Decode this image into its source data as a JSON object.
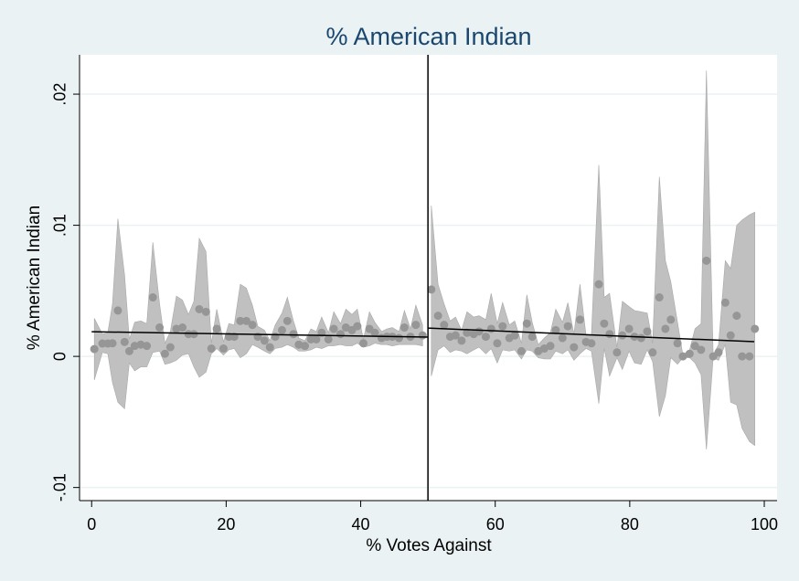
{
  "chart_data": {
    "type": "scatter",
    "title": "% American Indian",
    "x_label": "% Votes Against",
    "y_label": "% American Indian",
    "xlim": [
      -1.8,
      101.9
    ],
    "ylim": [
      -0.011,
      0.023
    ],
    "xticks": [
      0,
      20,
      40,
      60,
      80,
      100
    ],
    "yticks": [
      {
        "value": -0.01,
        "label": "-.01"
      },
      {
        "value": 0,
        "label": "0"
      },
      {
        "value": 0.01,
        "label": ".01"
      },
      {
        "value": 0.02,
        "label": ".02"
      }
    ],
    "grid": true,
    "cutoff": 50,
    "band_color": "#c0c0c0",
    "point_color": "#969696",
    "fit_color": "#000000",
    "series": [
      {
        "x": [
          0.4,
          1.6,
          2.4,
          3.1,
          3.9,
          4.9,
          5.6,
          6.4,
          7.3,
          8.2,
          9.1,
          10.1,
          10.9,
          11.7,
          12.6,
          13.5,
          14.4,
          15.2,
          16,
          17,
          17.8,
          18.6,
          19.6,
          20.4,
          21.2,
          22.1,
          23,
          23.9,
          24.7,
          25.7,
          26.5,
          27.3,
          28.3,
          29.1,
          30,
          30.8,
          31.7,
          32.6,
          33.4,
          34.2,
          35.2,
          36,
          37,
          37.8,
          38.7,
          39.5,
          40.4,
          41.3,
          42.1,
          43.1,
          43.9,
          44.7,
          45.7,
          46.5,
          47.4,
          48.2,
          49.2
        ],
        "values": [
          0.00056,
          0.00098,
          0.00098,
          0.001,
          0.0035,
          0.0011,
          0.0004,
          0.0008,
          0.0009,
          0.0008,
          0.0045,
          0.0022,
          0.0002,
          0.0007,
          0.0021,
          0.0022,
          0.0017,
          0.0017,
          0.0036,
          0.0034,
          0.0006,
          0.0021,
          0.0006,
          0.0015,
          0.0015,
          0.0027,
          0.0027,
          0.0024,
          0.0015,
          0.0012,
          0.0007,
          0.0015,
          0.002,
          0.0027,
          0.0017,
          0.0009,
          0.0008,
          0.0013,
          0.0013,
          0.0018,
          0.0013,
          0.0021,
          0.0017,
          0.0022,
          0.002,
          0.0023,
          0.001,
          0.0021,
          0.0018,
          0.0014,
          0.0015,
          0.0015,
          0.0014,
          0.0022,
          0.0015,
          0.0024,
          0.0016
        ],
        "lower": [
          -0.0018,
          0.0003,
          0.0002,
          -0.002,
          -0.0035,
          -0.004,
          -0.0005,
          -0.0011,
          -0.0008,
          -0.0008,
          0.0003,
          0.0004,
          -0.0006,
          -0.0005,
          -0.0003,
          0.0001,
          0.0002,
          -0.0008,
          -0.0016,
          -0.0012,
          0.0002,
          0.0006,
          0.0001,
          0.0005,
          0.0006,
          -0.0001,
          0.0002,
          0.0009,
          0.0007,
          0.0004,
          0.0002,
          0.0006,
          0.0007,
          0.0009,
          0.0007,
          0.0004,
          0.0004,
          0.0005,
          0.0007,
          0.0006,
          0.0008,
          0.0008,
          0.0009,
          0.0008,
          0.0008,
          0.001,
          0.0007,
          0.0008,
          0.001,
          0.0009,
          0.0009,
          0.0008,
          0.0009,
          0.0009,
          0.0009,
          0.0009,
          0.0008
        ],
        "upper": [
          0.0029,
          0.0017,
          0.0018,
          0.004,
          0.0105,
          0.0062,
          0.0013,
          0.0026,
          0.0027,
          0.0025,
          0.0087,
          0.004,
          0.001,
          0.0019,
          0.0046,
          0.0043,
          0.0032,
          0.0042,
          0.009,
          0.008,
          0.001,
          0.0036,
          0.0011,
          0.0025,
          0.0024,
          0.0055,
          0.0052,
          0.0039,
          0.0023,
          0.002,
          0.0012,
          0.0024,
          0.0033,
          0.0045,
          0.0027,
          0.0014,
          0.0012,
          0.0021,
          0.0019,
          0.003,
          0.0018,
          0.0034,
          0.0025,
          0.0036,
          0.0032,
          0.0036,
          0.0013,
          0.0034,
          0.0026,
          0.0019,
          0.0021,
          0.0022,
          0.0019,
          0.0035,
          0.0021,
          0.0039,
          0.0024
        ]
      },
      {
        "x": [
          50.5,
          51.5,
          52.4,
          53.3,
          54.1,
          55,
          55.8,
          56.8,
          57.6,
          58.6,
          59.4,
          60.3,
          61.1,
          62.1,
          62.9,
          63.9,
          64.7,
          65.5,
          66.4,
          67.3,
          68.2,
          69,
          70,
          70.8,
          71.7,
          72.6,
          73.5,
          74.3,
          75.4,
          76.2,
          77,
          78.1,
          78.9,
          79.9,
          80.7,
          81.7,
          82.6,
          83.4,
          84.4,
          85.3,
          86.1,
          87.1,
          87.9,
          88.9,
          89.7,
          90.6,
          91.4,
          92.4,
          93.2,
          94.2,
          95,
          95.9,
          96.7,
          97.8,
          98.6
        ],
        "values": [
          0.0051,
          0.0031,
          0.0024,
          0.0015,
          0.0016,
          0.0012,
          0.0018,
          0.0017,
          0.0019,
          0.0015,
          0.0021,
          0.001,
          0.0023,
          0.0014,
          0.0016,
          0.0004,
          0.0025,
          0.0015,
          0.0004,
          0.0006,
          0.0008,
          0.002,
          0.0014,
          0.0023,
          0.0007,
          0.0028,
          0.0011,
          0.001,
          0.0055,
          0.0025,
          0.0017,
          0.0003,
          0.0016,
          0.0021,
          0.0015,
          0.0014,
          0.0019,
          0.0003,
          0.0045,
          0.0021,
          0.0028,
          0.001,
          0,
          0.0002,
          0.0008,
          0.0005,
          0.0073,
          0,
          0.0003,
          0.0041,
          0.0016,
          0.0031,
          0,
          0,
          0.0021
        ],
        "lower": [
          -0.0015,
          0.0005,
          0.0008,
          0.0003,
          0.0005,
          0.0004,
          0.0002,
          0.0005,
          0.0007,
          0.0002,
          0.0006,
          -0.0005,
          0.0005,
          0.0004,
          0.0005,
          -0.0002,
          0.0005,
          0.0004,
          -0.0001,
          -0.0002,
          -0.0002,
          0.0004,
          0.0002,
          0.0005,
          -0.0003,
          0.0002,
          0.0006,
          0.0004,
          -0.0036,
          0.0006,
          -0.0015,
          -0.0001,
          -0.001,
          0.0004,
          -0.0005,
          -0.0006,
          0.0005,
          -0.0004,
          -0.0046,
          -0.003,
          -0.0001,
          -0.0006,
          -0.0001,
          -0.0001,
          -0.0005,
          -0.0014,
          -0.0071,
          -0.0001,
          -0.0003,
          0.0009,
          -0.0035,
          -0.0037,
          -0.0055,
          -0.0065,
          -0.0068
        ],
        "upper": [
          0.0115,
          0.0055,
          0.004,
          0.0027,
          0.003,
          0.002,
          0.0034,
          0.003,
          0.0031,
          0.0028,
          0.0048,
          0.0025,
          0.0041,
          0.0024,
          0.0027,
          0.001,
          0.0047,
          0.0026,
          0.0009,
          0.0014,
          0.0018,
          0.0036,
          0.0026,
          0.0041,
          0.0017,
          0.0055,
          0.0016,
          0.0016,
          0.0146,
          0.0045,
          0.0048,
          0.0007,
          0.0042,
          0.0038,
          0.0035,
          0.0034,
          0.0033,
          0.001,
          0.0137,
          0.0073,
          0.0057,
          0.0026,
          0.0001,
          0.0005,
          0.0021,
          0.0025,
          0.0218,
          0.0001,
          0.0009,
          0.0073,
          0.0067,
          0.01,
          0.0104,
          0.0108,
          0.011
        ]
      }
    ],
    "fits": [
      {
        "x": [
          0,
          50
        ],
        "values": [
          0.00188,
          0.00147
        ]
      },
      {
        "x": [
          50,
          98.5
        ],
        "values": [
          0.00216,
          0.00112
        ]
      }
    ]
  }
}
